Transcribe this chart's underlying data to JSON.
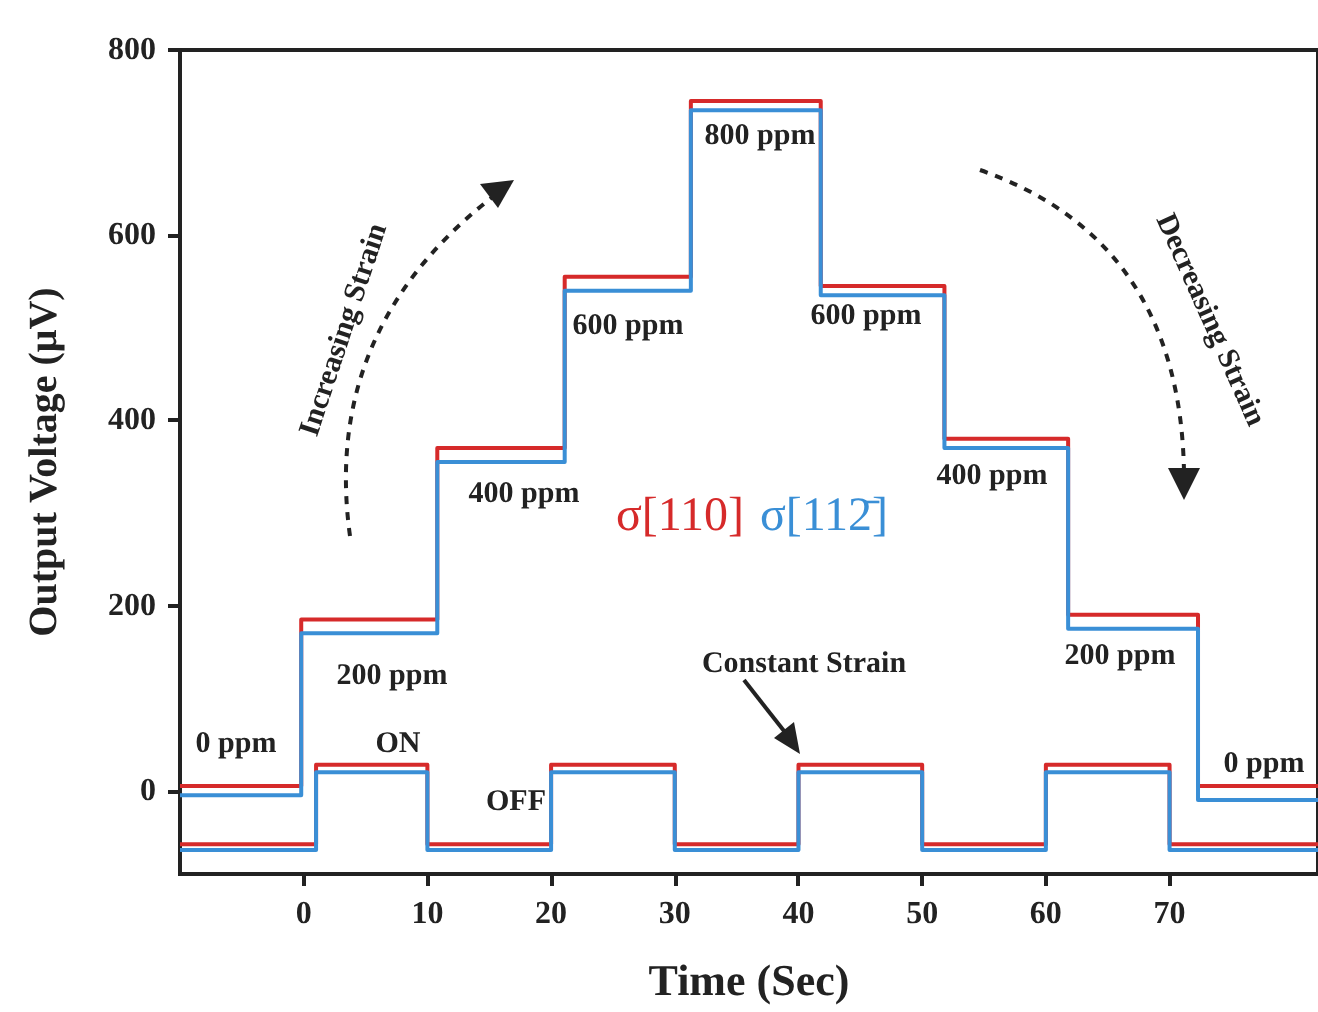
{
  "chart_data": {
    "type": "step",
    "xlabel": "Time (Sec)",
    "ylabel": "Output Voltage (μV)",
    "xlim": [
      -10,
      82
    ],
    "xticks": [
      0,
      10,
      20,
      30,
      40,
      50,
      60,
      70
    ],
    "ylim": [
      -90,
      800
    ],
    "yticks": [
      0,
      200,
      400,
      600,
      800
    ],
    "grid": false,
    "legend": false,
    "marker": "none",
    "line_style": "solid",
    "series": [
      {
        "name": "σ[110]",
        "color": "#d62a2a",
        "x": [
          -10,
          -0.2,
          10.8,
          21.1,
          31.3,
          41.8,
          51.8,
          61.8,
          72.3,
          82
        ],
        "values": [
          5,
          185,
          370,
          555,
          745,
          545,
          380,
          190,
          5,
          5
        ]
      },
      {
        "name": "σ[112̄]",
        "color": "#3a8fd6",
        "x": [
          -10,
          -0.2,
          10.8,
          21.1,
          31.3,
          41.8,
          51.8,
          61.8,
          72.3,
          82
        ],
        "values": [
          -5,
          170,
          355,
          540,
          735,
          535,
          370,
          175,
          -10,
          -10
        ]
      },
      {
        "color": "#d62a2a",
        "x": [
          -10,
          1,
          10,
          20,
          30,
          40,
          50,
          60,
          70,
          82
        ],
        "values": [
          -58,
          28,
          -58,
          28,
          -58,
          28,
          -58,
          28,
          -58,
          -58
        ]
      },
      {
        "color": "#3a8fd6",
        "x": [
          -10,
          1,
          10,
          20,
          30,
          40,
          50,
          60,
          70,
          82
        ],
        "values": [
          -64,
          20,
          -64,
          20,
          -64,
          20,
          -64,
          20,
          -64,
          -64
        ]
      }
    ],
    "annotations": [
      "0 ppm",
      "200 ppm",
      "400 ppm",
      "600 ppm",
      "800 ppm",
      "600 ppm",
      "400 ppm",
      "200 ppm",
      "0 ppm",
      "ON",
      "OFF",
      "Constant Strain",
      "Increasing Strain",
      "Decreasing Strain"
    ]
  }
}
